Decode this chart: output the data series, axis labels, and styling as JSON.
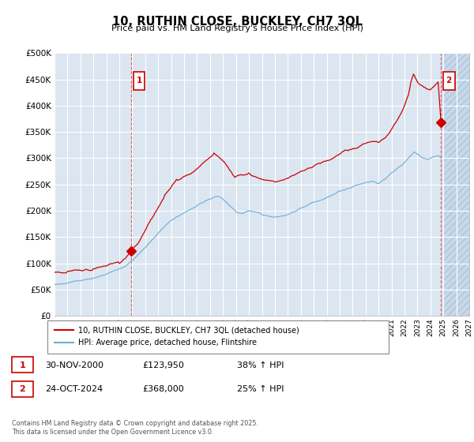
{
  "title": "10, RUTHIN CLOSE, BUCKLEY, CH7 3QL",
  "subtitle": "Price paid vs. HM Land Registry's House Price Index (HPI)",
  "ylim": [
    0,
    500000
  ],
  "yticks": [
    0,
    50000,
    100000,
    150000,
    200000,
    250000,
    300000,
    350000,
    400000,
    450000,
    500000
  ],
  "ytick_labels": [
    "£0",
    "£50K",
    "£100K",
    "£150K",
    "£200K",
    "£250K",
    "£300K",
    "£350K",
    "£400K",
    "£450K",
    "£500K"
  ],
  "xlim_start": 1995.0,
  "xlim_end": 2027.0,
  "background_color": "#dce6f1",
  "grid_color": "#ffffff",
  "red_line_color": "#cc0000",
  "blue_line_color": "#6baed6",
  "marker1_date": 2000.92,
  "marker1_price": 123950,
  "marker2_date": 2024.82,
  "marker2_price": 368000,
  "legend_red_label": "10, RUTHIN CLOSE, BUCKLEY, CH7 3QL (detached house)",
  "legend_blue_label": "HPI: Average price, detached house, Flintshire",
  "annotation1_num": "1",
  "annotation1_date": "30-NOV-2000",
  "annotation1_price": "£123,950",
  "annotation1_hpi": "38% ↑ HPI",
  "annotation2_num": "2",
  "annotation2_date": "24-OCT-2024",
  "annotation2_price": "£368,000",
  "annotation2_hpi": "25% ↑ HPI",
  "footer": "Contains HM Land Registry data © Crown copyright and database right 2025.\nThis data is licensed under the Open Government Licence v3.0.",
  "future_start": 2025.0
}
